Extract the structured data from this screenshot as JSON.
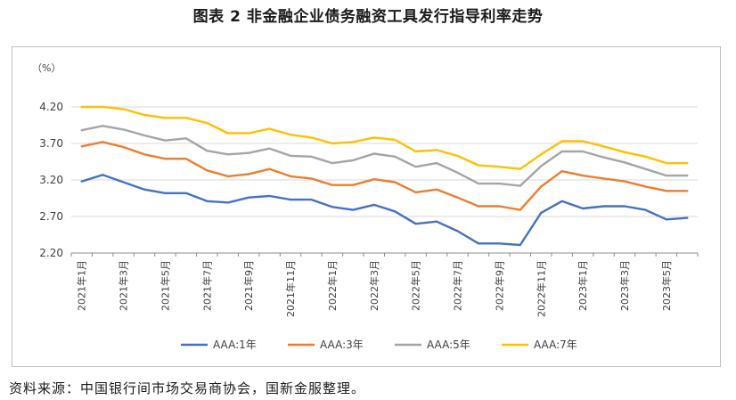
{
  "title": "图表 2  非金融企业债务融资工具发行指导利率走势",
  "source": "资料来源：中国银行间市场交易商协会，国新金服整理。",
  "chart_data": {
    "type": "line",
    "yunit": "（%）",
    "ylim": [
      2.2,
      4.2
    ],
    "yticks": [
      "4.20",
      "3.70",
      "3.20",
      "2.70",
      "2.20"
    ],
    "ytick_values": [
      4.2,
      3.7,
      3.2,
      2.7,
      2.2
    ],
    "xticks": [
      "2021年1月",
      "2021年3月",
      "2021年5月",
      "2021年7月",
      "2021年9月",
      "2021年11月",
      "2022年1月",
      "2022年3月",
      "2022年5月",
      "2022年7月",
      "2022年9月",
      "2022年11月",
      "2023年1月",
      "2023年3月",
      "2023年5月"
    ],
    "n_points": 30,
    "legend_position": "bottom",
    "grid": "horizontal",
    "series": [
      {
        "name": "AAA:1年",
        "color": "#4472c4",
        "values": [
          3.18,
          3.27,
          3.17,
          3.07,
          3.02,
          3.02,
          2.91,
          2.89,
          2.96,
          2.98,
          2.93,
          2.93,
          2.83,
          2.79,
          2.86,
          2.77,
          2.6,
          2.63,
          2.5,
          2.33,
          2.33,
          2.31,
          2.75,
          2.91,
          2.81,
          2.84,
          2.84,
          2.79,
          2.66,
          2.68
        ]
      },
      {
        "name": "AAA:3年",
        "color": "#ed7d31",
        "values": [
          3.66,
          3.72,
          3.65,
          3.55,
          3.49,
          3.49,
          3.33,
          3.25,
          3.28,
          3.35,
          3.25,
          3.22,
          3.13,
          3.13,
          3.21,
          3.17,
          3.03,
          3.07,
          2.96,
          2.84,
          2.84,
          2.79,
          3.11,
          3.32,
          3.26,
          3.22,
          3.18,
          3.11,
          3.05,
          3.05
        ]
      },
      {
        "name": "AAA:5年",
        "color": "#a5a5a5",
        "values": [
          3.88,
          3.94,
          3.89,
          3.81,
          3.74,
          3.77,
          3.6,
          3.55,
          3.57,
          3.63,
          3.53,
          3.52,
          3.43,
          3.47,
          3.56,
          3.52,
          3.38,
          3.43,
          3.3,
          3.15,
          3.15,
          3.12,
          3.39,
          3.59,
          3.59,
          3.51,
          3.44,
          3.35,
          3.26,
          3.26
        ]
      },
      {
        "name": "AAA:7年",
        "color": "#ffc000",
        "values": [
          4.2,
          4.2,
          4.17,
          4.09,
          4.05,
          4.05,
          3.98,
          3.84,
          3.84,
          3.9,
          3.82,
          3.78,
          3.7,
          3.72,
          3.78,
          3.75,
          3.59,
          3.61,
          3.53,
          3.4,
          3.38,
          3.35,
          3.55,
          3.73,
          3.73,
          3.66,
          3.58,
          3.52,
          3.43,
          3.43
        ]
      }
    ]
  }
}
